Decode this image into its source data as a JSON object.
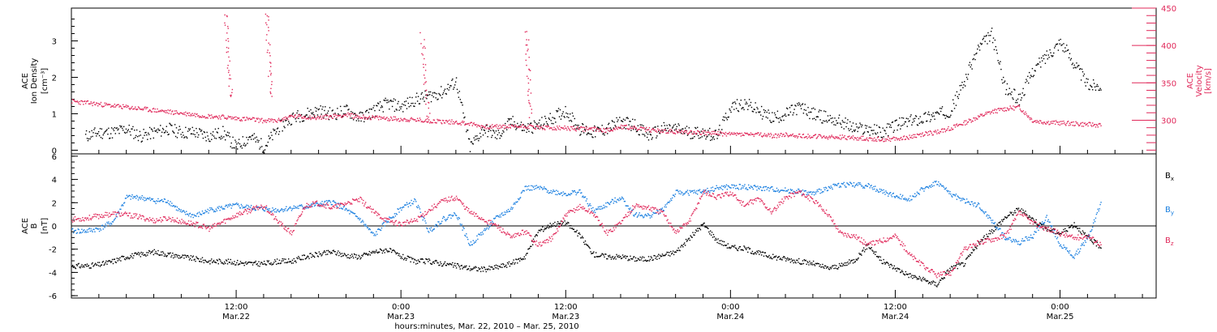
{
  "colors": {
    "black": "#000000",
    "red": "#e0285a",
    "blue": "#1a7fe0"
  },
  "chart_data": [
    {
      "type": "scatter",
      "panel": "top",
      "ylabel_line1": "ACE",
      "ylabel_line2": "Ion Density",
      "ylabel_units": "[cm⁻³]",
      "ylim": [
        -0.1,
        3.9
      ],
      "yticks": [
        "0",
        "1",
        "2",
        "3"
      ],
      "y2label_line1": "ACE",
      "y2label_line2": "Velocity",
      "y2label_units": "[km/s]",
      "y2lim": [
        255,
        450
      ],
      "y2ticks": [
        "300",
        "350",
        "400",
        "450"
      ],
      "xlim_hours": [
        0,
        79
      ],
      "series": [
        {
          "name": "",
          "axis": "left",
          "color": "#000000",
          "x": [
            1,
            2,
            3,
            4,
            5,
            6,
            7,
            8,
            9,
            10,
            11,
            12,
            13,
            14,
            15,
            16,
            17,
            18,
            19,
            20,
            21,
            22,
            23,
            24,
            25,
            26,
            27,
            28,
            29,
            30,
            31,
            32,
            33,
            34,
            35,
            36,
            37,
            38,
            39,
            40,
            41,
            42,
            43,
            44,
            45,
            46,
            47,
            48,
            49,
            50,
            51,
            52,
            53,
            54,
            55,
            56,
            57,
            58,
            59,
            60,
            61,
            62,
            63,
            64,
            65,
            66,
            67,
            68,
            69,
            70,
            71,
            72,
            73,
            74,
            75
          ],
          "y": [
            0.4,
            0.5,
            0.5,
            0.6,
            0.4,
            0.5,
            0.6,
            0.5,
            0.5,
            0.4,
            0.5,
            0.1,
            0.4,
            0.1,
            0.6,
            0.9,
            1.0,
            1.1,
            1.0,
            1.1,
            0.9,
            1.1,
            1.3,
            1.2,
            1.4,
            1.5,
            1.6,
            1.9,
            0.1,
            0.6,
            0.4,
            0.8,
            0.6,
            0.7,
            0.9,
            1.1,
            0.6,
            0.5,
            0.6,
            0.8,
            0.7,
            0.4,
            0.6,
            0.6,
            0.5,
            0.5,
            0.4,
            1.2,
            1.3,
            1.1,
            0.9,
            1.0,
            1.2,
            1.0,
            0.9,
            0.8,
            0.6,
            0.6,
            0.5,
            0.7,
            0.8,
            0.9,
            1.0,
            1.1,
            1.9,
            2.8,
            3.2,
            1.7,
            1.4,
            2.2,
            2.6,
            3.0,
            2.4,
            1.8,
            1.8
          ]
        },
        {
          "name": "",
          "axis": "right",
          "color": "#e0285a",
          "x": [
            0,
            1,
            2,
            3,
            4,
            5,
            6,
            7,
            8,
            9,
            10,
            11,
            12,
            13,
            14,
            15,
            16,
            17,
            18,
            19,
            20,
            21,
            22,
            23,
            24,
            25,
            26,
            27,
            28,
            29,
            30,
            31,
            32,
            33,
            34,
            35,
            36,
            37,
            38,
            39,
            40,
            41,
            42,
            43,
            44,
            45,
            46,
            47,
            48,
            49,
            50,
            51,
            52,
            53,
            54,
            55,
            56,
            57,
            58,
            59,
            60,
            61,
            62,
            63,
            64,
            65,
            66,
            67,
            68,
            69,
            70,
            71,
            72,
            73,
            74,
            75
          ],
          "y": [
            326,
            324,
            322,
            320,
            318,
            316,
            314,
            312,
            310,
            308,
            306,
            305,
            303,
            302,
            300,
            300,
            306,
            305,
            304,
            306,
            308,
            305,
            304,
            303,
            302,
            301,
            300,
            299,
            298,
            296,
            292,
            292,
            292,
            293,
            291,
            290,
            290,
            289,
            289,
            287,
            292,
            290,
            288,
            286,
            285,
            285,
            284,
            283,
            282,
            282,
            281,
            280,
            281,
            280,
            279,
            278,
            278,
            277,
            276,
            275,
            276,
            278,
            282,
            285,
            290,
            297,
            305,
            312,
            316,
            318,
            300,
            298,
            297,
            296,
            295,
            294
          ]
        }
      ],
      "spikes": {
        "color": "#e0285a",
        "x": [
          11.2,
          11.6,
          14.2,
          14.5,
          25.5,
          26.0,
          33.1,
          33.4
        ],
        "y": [
          445,
          430,
          445,
          430,
          415,
          405,
          420,
          415
        ]
      }
    },
    {
      "type": "scatter",
      "panel": "bottom",
      "ylabel_line1": "ACE",
      "ylabel_line2": "B",
      "ylabel_units": "[nT]",
      "ylim": [
        -6.2,
        6.2
      ],
      "yticks": [
        "-6",
        "-4",
        "-2",
        "0",
        "2",
        "4",
        "6"
      ],
      "xlim_hours": [
        0,
        79
      ],
      "series": [
        {
          "name": "Bx",
          "color": "#000000",
          "x": [
            0,
            1,
            2,
            3,
            4,
            5,
            6,
            7,
            8,
            9,
            10,
            11,
            12,
            13,
            14,
            15,
            16,
            17,
            18,
            19,
            20,
            21,
            22,
            23,
            24,
            25,
            26,
            27,
            28,
            29,
            30,
            31,
            32,
            33,
            34,
            35,
            36,
            37,
            38,
            39,
            40,
            41,
            42,
            43,
            44,
            45,
            46,
            47,
            48,
            49,
            50,
            51,
            52,
            53,
            54,
            55,
            56,
            57,
            58,
            59,
            60,
            61,
            62,
            63,
            64,
            65,
            66,
            67,
            68,
            69,
            70,
            71,
            72,
            73,
            74,
            75
          ],
          "y": [
            -3.4,
            -3.4,
            -3.3,
            -3.0,
            -2.6,
            -2.4,
            -2.2,
            -2.4,
            -2.6,
            -2.8,
            -3.0,
            -3.0,
            -3.1,
            -3.2,
            -3.2,
            -3.0,
            -3.0,
            -2.6,
            -2.4,
            -2.2,
            -2.5,
            -2.6,
            -2.2,
            -2.0,
            -2.6,
            -3.0,
            -3.0,
            -3.2,
            -3.4,
            -3.6,
            -3.7,
            -3.5,
            -3.2,
            -2.6,
            -0.4,
            0.2,
            0.3,
            -0.8,
            -2.4,
            -2.6,
            -2.6,
            -2.8,
            -2.8,
            -2.5,
            -2.2,
            -1.0,
            0.2,
            -1.2,
            -1.8,
            -1.9,
            -2.3,
            -2.6,
            -2.8,
            -3.0,
            -3.2,
            -3.6,
            -3.4,
            -2.9,
            -1.6,
            -3.0,
            -3.6,
            -4.2,
            -4.6,
            -5.0,
            -3.6,
            -3.2,
            -1.5,
            -0.4,
            0.8,
            1.5,
            0.6,
            -0.2,
            -0.6,
            0.2,
            -1.0,
            -1.8
          ]
        },
        {
          "name": "By",
          "color": "#1a7fe0",
          "x": [
            0,
            1,
            2,
            3,
            4,
            5,
            6,
            7,
            8,
            9,
            10,
            11,
            12,
            13,
            14,
            15,
            16,
            17,
            18,
            19,
            20,
            21,
            22,
            23,
            24,
            25,
            26,
            27,
            28,
            29,
            30,
            31,
            32,
            33,
            34,
            35,
            36,
            37,
            38,
            39,
            40,
            41,
            42,
            43,
            44,
            45,
            46,
            47,
            48,
            49,
            50,
            51,
            52,
            53,
            54,
            55,
            56,
            57,
            58,
            59,
            60,
            61,
            62,
            63,
            64,
            65,
            66,
            67,
            68,
            69,
            70,
            71,
            72,
            73,
            74,
            75
          ],
          "y": [
            -0.4,
            -0.4,
            -0.2,
            0.4,
            2.5,
            2.5,
            2.2,
            2.2,
            1.2,
            0.9,
            1.4,
            1.6,
            1.8,
            1.6,
            1.5,
            1.4,
            1.6,
            1.7,
            1.9,
            2.1,
            1.4,
            0.6,
            -0.8,
            0.5,
            1.6,
            2.2,
            -0.4,
            0.6,
            1.1,
            -1.6,
            -0.4,
            0.8,
            1.5,
            3.3,
            3.3,
            3.0,
            2.8,
            3.0,
            1.3,
            1.9,
            2.5,
            1.0,
            0.9,
            1.4,
            2.9,
            2.9,
            3.0,
            3.3,
            3.4,
            3.4,
            3.3,
            3.2,
            3.1,
            3.0,
            2.8,
            3.3,
            3.6,
            3.6,
            3.5,
            3.0,
            2.6,
            2.4,
            3.2,
            3.8,
            2.8,
            2.2,
            1.8,
            0.5,
            -1.0,
            -1.4,
            -0.8,
            0.8,
            -1.6,
            -2.6,
            -1.0,
            2.2
          ]
        },
        {
          "name": "Bz",
          "color": "#e0285a",
          "x": [
            0,
            1,
            2,
            3,
            4,
            5,
            6,
            7,
            8,
            9,
            10,
            11,
            12,
            13,
            14,
            15,
            16,
            17,
            18,
            19,
            20,
            21,
            22,
            23,
            24,
            25,
            26,
            27,
            28,
            29,
            30,
            31,
            32,
            33,
            34,
            35,
            36,
            37,
            38,
            39,
            40,
            41,
            42,
            43,
            44,
            45,
            46,
            47,
            48,
            49,
            50,
            51,
            52,
            53,
            54,
            55,
            56,
            57,
            58,
            59,
            60,
            61,
            62,
            63,
            64,
            65,
            66,
            67,
            68,
            69,
            70,
            71,
            72,
            73,
            74,
            75
          ],
          "y": [
            0.6,
            0.7,
            0.9,
            1.1,
            1.0,
            0.8,
            0.5,
            0.7,
            0.4,
            0.2,
            -0.2,
            0.4,
            1.0,
            1.4,
            1.8,
            0.4,
            -0.6,
            1.8,
            2.0,
            1.6,
            2.0,
            2.3,
            1.2,
            0.5,
            0.2,
            0.5,
            1.4,
            2.2,
            2.5,
            1.2,
            0.6,
            0.0,
            -1.0,
            -0.4,
            -1.6,
            -1.0,
            1.0,
            1.7,
            1.1,
            -0.6,
            0.4,
            1.8,
            1.6,
            1.2,
            -0.5,
            0.5,
            3.0,
            2.5,
            2.9,
            1.8,
            2.4,
            1.2,
            2.5,
            3.0,
            2.2,
            1.2,
            -0.6,
            -0.8,
            -1.6,
            -1.2,
            -0.8,
            -2.4,
            -3.4,
            -4.2,
            -4.0,
            -2.0,
            -1.4,
            -1.1,
            -0.8,
            1.2,
            0.3,
            -0.2,
            -0.6,
            -1.0,
            -0.8,
            -1.6
          ]
        }
      ]
    }
  ],
  "x_axis": {
    "ticks": [
      {
        "hour": 12,
        "time": "12:00",
        "date": "Mar.22"
      },
      {
        "hour": 24,
        "time": "0:00",
        "date": "Mar.23"
      },
      {
        "hour": 36,
        "time": "12:00",
        "date": "Mar.23"
      },
      {
        "hour": 48,
        "time": "0:00",
        "date": "Mar.24"
      },
      {
        "hour": 60,
        "time": "12:00",
        "date": "Mar.24"
      },
      {
        "hour": 72,
        "time": "0:00",
        "date": "Mar.25"
      }
    ],
    "label": "hours:minutes, Mar. 22, 2010 – Mar. 25, 2010"
  }
}
